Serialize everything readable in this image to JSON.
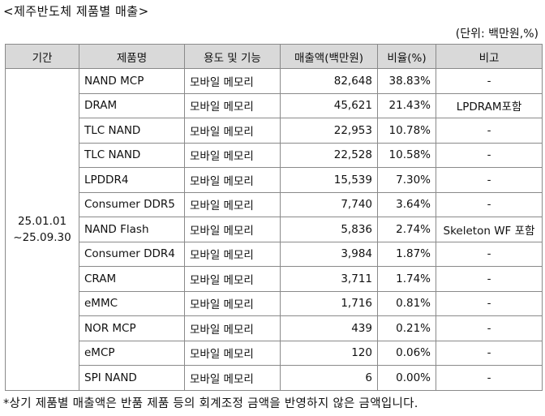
{
  "title": "<제주반도체 제품별 매출>",
  "unit": "(단위: 백만원,%)",
  "columns": [
    "기간",
    "제품명",
    "용도 및 기능",
    "매출액(백만원)",
    "비율(%)",
    "비고"
  ],
  "period": [
    "25.01.01",
    "~25.09.30"
  ],
  "rows": [
    {
      "name": "NAND MCP",
      "use": "모바일 메모리",
      "amount": "82,648",
      "ratio": "38.83%",
      "note": "-"
    },
    {
      "name": "DRAM",
      "use": "모바일 메모리",
      "amount": "45,621",
      "ratio": "21.43%",
      "note": "LPDRAM포함"
    },
    {
      "name": "TLC NAND",
      "use": "모바일 메모리",
      "amount": "22,953",
      "ratio": "10.78%",
      "note": "-"
    },
    {
      "name": "TLC NAND",
      "use": "모바일 메모리",
      "amount": "22,528",
      "ratio": "10.58%",
      "note": "-"
    },
    {
      "name": "LPDDR4",
      "use": "모바일 메모리",
      "amount": "15,539",
      "ratio": "7.30%",
      "note": "-"
    },
    {
      "name": "Consumer DDR5",
      "use": "모바일 메모리",
      "amount": "7,740",
      "ratio": "3.64%",
      "note": "-"
    },
    {
      "name": "NAND Flash",
      "use": "모바일 메모리",
      "amount": "5,836",
      "ratio": "2.74%",
      "note": "Skeleton WF 포함"
    },
    {
      "name": "Consumer DDR4",
      "use": "모바일 메모리",
      "amount": "3,984",
      "ratio": "1.87%",
      "note": "-"
    },
    {
      "name": "CRAM",
      "use": "모바일 메모리",
      "amount": "3,711",
      "ratio": "1.74%",
      "note": "-"
    },
    {
      "name": "eMMC",
      "use": "모바일 메모리",
      "amount": "1,716",
      "ratio": "0.81%",
      "note": "-"
    },
    {
      "name": "NOR MCP",
      "use": "모바일 메모리",
      "amount": "439",
      "ratio": "0.21%",
      "note": "-"
    },
    {
      "name": "eMCP",
      "use": "모바일 메모리",
      "amount": "120",
      "ratio": "0.06%",
      "note": "-"
    },
    {
      "name": "SPI NAND",
      "use": "모바일 메모리",
      "amount": "6",
      "ratio": "0.00%",
      "note": "-"
    }
  ],
  "footnote": "*상기 제품별 매출액은 반품 제품 등의 회계조정 금액을 반영하지 않은 금액입니다."
}
